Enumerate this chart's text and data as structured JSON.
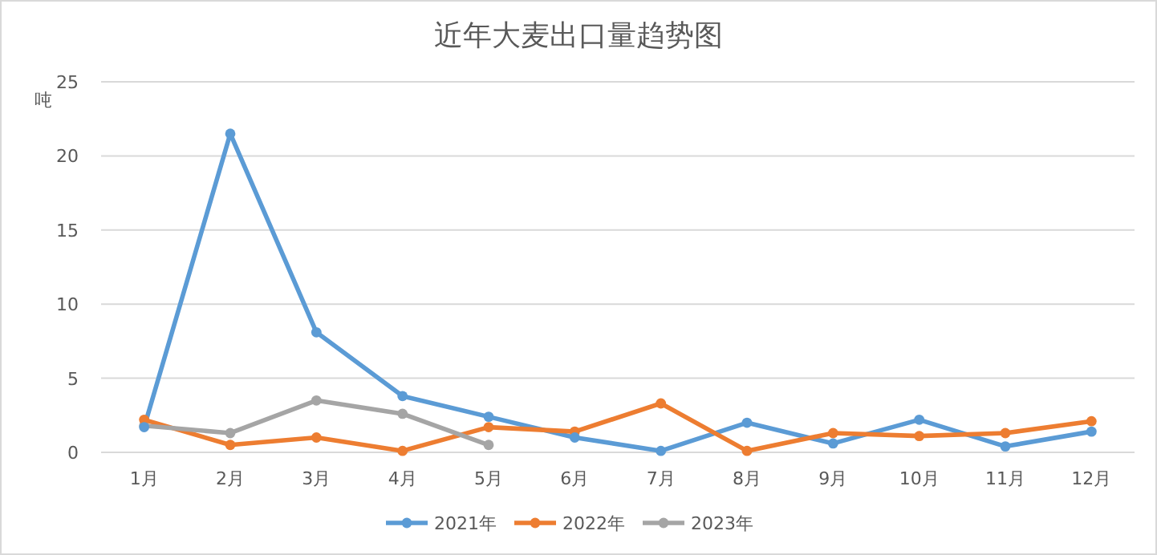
{
  "chart_data": {
    "type": "line",
    "title": "近年大麦出口量趋势图",
    "ylabel": "吨",
    "categories": [
      "1月",
      "2月",
      "3月",
      "4月",
      "5月",
      "6月",
      "7月",
      "8月",
      "9月",
      "10月",
      "11月",
      "12月"
    ],
    "series": [
      {
        "name": "2021年",
        "color": "#5b9bd5",
        "values": [
          1.7,
          21.5,
          8.1,
          3.8,
          2.4,
          1.0,
          0.1,
          2.0,
          0.6,
          2.2,
          0.4,
          1.4
        ]
      },
      {
        "name": "2022年",
        "color": "#ed7d31",
        "values": [
          2.2,
          0.5,
          1.0,
          0.1,
          1.7,
          1.4,
          3.3,
          0.1,
          1.3,
          1.1,
          1.3,
          2.1
        ]
      },
      {
        "name": "2023年",
        "color": "#a5a5a5",
        "values": [
          1.8,
          1.3,
          3.5,
          2.6,
          0.5,
          null,
          null,
          null,
          null,
          null,
          null,
          null
        ]
      }
    ],
    "ylim": [
      0,
      25
    ],
    "yticks": [
      0,
      5,
      10,
      15,
      20,
      25
    ],
    "grid": "y",
    "legend": "bottom",
    "marker": "circle",
    "line_style": "solid"
  }
}
